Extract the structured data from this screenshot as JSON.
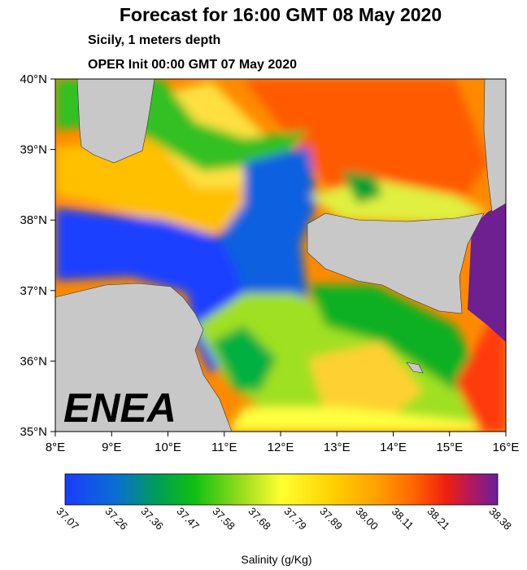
{
  "header": {
    "title": "Forecast for 16:00 GMT  08 May 2020",
    "subtitle": "Sicily, 1 meters depth",
    "init": "OPER Init 00:00 GMT  07 May 2020"
  },
  "map": {
    "lat_labels": [
      "40°N",
      "39°N",
      "38°N",
      "37°N",
      "36°N",
      "35°N"
    ],
    "lon_labels": [
      "8°E",
      "9°E",
      "10°E",
      "11°E",
      "12°E",
      "13°E",
      "14°E",
      "15°E",
      "16°E"
    ],
    "logo": "ENEA"
  },
  "colorbar": {
    "labels": [
      "37.07",
      "37.26",
      "37.36",
      "37.47",
      "37.58",
      "37.68",
      "37.79",
      "37.89",
      "38.00",
      "38.11",
      "38.21",
      "38.38"
    ],
    "title": "Salinity (g/Kg)"
  }
}
